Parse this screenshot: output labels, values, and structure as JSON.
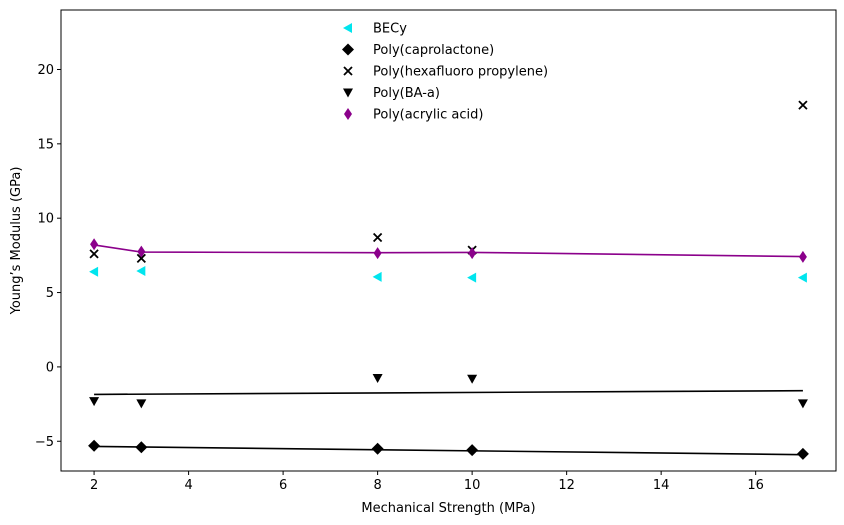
{
  "chart_data": {
    "type": "scatter",
    "title": "",
    "xlabel": "Mechanical Strength (MPa)",
    "ylabel": "Young’s Modulus (GPa)",
    "xlim": [
      1.3,
      17.7
    ],
    "ylim": [
      -7.0,
      24.0
    ],
    "xticks": [
      2,
      4,
      6,
      8,
      10,
      12,
      14,
      16
    ],
    "yticks": [
      -5,
      0,
      5,
      10,
      15,
      20
    ],
    "grid": false,
    "legend_position": "top-center",
    "series": [
      {
        "name": "BECy",
        "marker": "triangle-left",
        "color": "#00e5ee",
        "x": [
          2,
          3,
          8,
          10,
          17
        ],
        "y": [
          6.4,
          6.45,
          6.05,
          6.0,
          6.0
        ]
      },
      {
        "name": "Poly(caprolactone)",
        "marker": "diamond",
        "color": "#000000",
        "x": [
          2,
          3,
          8,
          10,
          17
        ],
        "y": [
          -5.3,
          -5.4,
          -5.5,
          -5.6,
          -5.85
        ],
        "trend": {
          "x": [
            2,
            17
          ],
          "y": [
            -5.35,
            -5.9
          ],
          "color": "#000000"
        }
      },
      {
        "name": "Poly(hexafluoro propylene)",
        "marker": "x",
        "color": "#000000",
        "x": [
          2,
          3,
          8,
          10,
          17
        ],
        "y": [
          7.6,
          7.3,
          8.7,
          7.85,
          17.6
        ]
      },
      {
        "name": "Poly(BA-a)",
        "marker": "triangle-down",
        "color": "#000000",
        "x": [
          2,
          3,
          8,
          10,
          17
        ],
        "y": [
          -2.3,
          -2.45,
          -0.75,
          -0.8,
          -2.45
        ],
        "trend": {
          "x": [
            2,
            17
          ],
          "y": [
            -1.85,
            -1.6
          ],
          "color": "#000000"
        }
      },
      {
        "name": "Poly(acrylic acid)",
        "marker": "thin-diamond",
        "color": "#8b008b",
        "x": [
          2,
          3,
          8,
          10,
          17
        ],
        "y": [
          8.25,
          7.75,
          7.65,
          7.65,
          7.4
        ],
        "trend": {
          "x": [
            2,
            3,
            8,
            10,
            17
          ],
          "y": [
            8.2,
            7.72,
            7.68,
            7.7,
            7.42
          ],
          "color": "#8b008b"
        }
      }
    ]
  }
}
